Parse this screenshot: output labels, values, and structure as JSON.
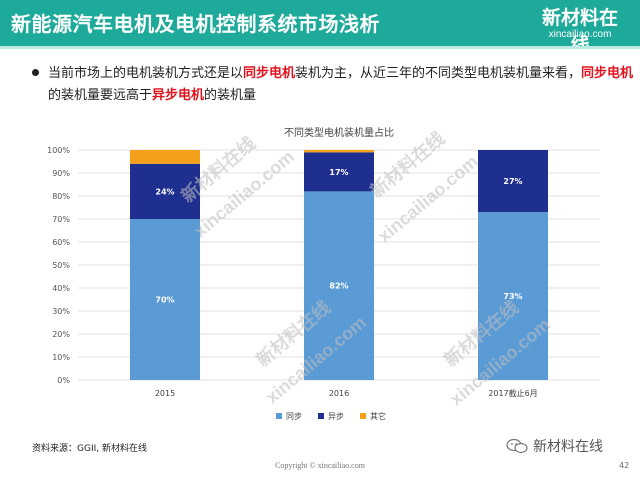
{
  "header": {
    "title": "新能源汽车电机及电机控制系统市场浅析"
  },
  "logo": {
    "name": "新材料在线",
    "url": "xincailiao.com"
  },
  "bullet": {
    "part1": "当前市场上的电机装机方式还是以",
    "hl1": "同步电机",
    "part2": "装机为主，从近三年的不同类型电机装机量来看，",
    "hl2": "同步电机",
    "part3": "的装机量要远高于",
    "hl3": "异步电机",
    "part4": "的装机量"
  },
  "chart_data": {
    "type": "bar",
    "stacked": true,
    "title": "不同类型电机装机量占比",
    "categories": [
      "2015",
      "2016",
      "2017截止6月"
    ],
    "series": [
      {
        "name": "同步",
        "color": "#5b9bd5",
        "values": [
          70,
          82,
          73
        ],
        "labels": [
          "70%",
          "82%",
          "73%"
        ]
      },
      {
        "name": "异步",
        "color": "#1f2f8f",
        "values": [
          24,
          17,
          27
        ],
        "labels": [
          "24%",
          "17%",
          "27%"
        ]
      },
      {
        "name": "其它",
        "color": "#f5a01a",
        "values": [
          6,
          1,
          0
        ],
        "labels": [
          "",
          "",
          ""
        ]
      }
    ],
    "ylim": [
      0,
      100
    ],
    "yticks": [
      "0%",
      "10%",
      "20%",
      "30%",
      "40%",
      "50%",
      "60%",
      "70%",
      "80%",
      "90%",
      "100%"
    ],
    "grid": true,
    "legend": "bottom"
  },
  "watermark": {
    "text1": "新材料在线",
    "text2": "xincailiao.com"
  },
  "source": "资料来源：GGII, 新材料在线",
  "copyright": "Copyright © xincailiao.com",
  "page_number": "42",
  "wechat": {
    "label": "新材料在线"
  }
}
